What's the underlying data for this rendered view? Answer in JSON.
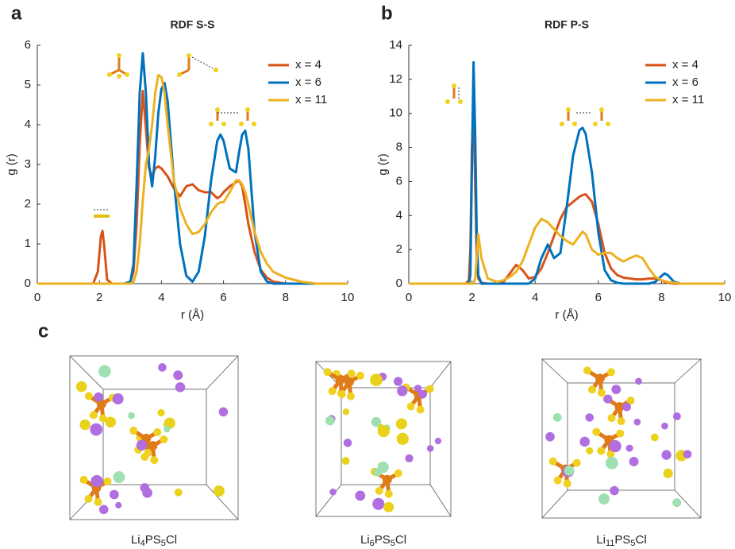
{
  "chart_data": [
    {
      "type": "line",
      "title": "RDF S-S",
      "xlabel": "r (Å)",
      "ylabel": "g (r)",
      "x": [
        0,
        1,
        1.8,
        1.95,
        2.05,
        2.1,
        2.15,
        2.25,
        2.4,
        2.8,
        3.0,
        3.1,
        3.2,
        3.3,
        3.4,
        3.5,
        3.6,
        3.7,
        3.8,
        3.9,
        4.0,
        4.1,
        4.2,
        4.4,
        4.6,
        4.8,
        5.0,
        5.2,
        5.4,
        5.6,
        5.8,
        5.9,
        6.0,
        6.2,
        6.4,
        6.5,
        6.6,
        6.7,
        6.8,
        7.0,
        7.2,
        7.4,
        7.6,
        8.0,
        8.5,
        9.0,
        10
      ],
      "series": [
        {
          "name": "x = 4",
          "color": "#d95319",
          "values": [
            0,
            0,
            0,
            0.3,
            1.2,
            1.33,
            1.0,
            0.1,
            0,
            0,
            0.05,
            0.3,
            1.5,
            3.5,
            4.85,
            3.9,
            2.9,
            2.7,
            2.9,
            2.95,
            2.9,
            2.8,
            2.7,
            2.4,
            2.2,
            2.45,
            2.5,
            2.35,
            2.3,
            2.3,
            2.15,
            2.2,
            2.3,
            2.45,
            2.55,
            2.6,
            2.45,
            2.0,
            1.5,
            0.8,
            0.35,
            0.15,
            0.05,
            0,
            0,
            0,
            0
          ]
        },
        {
          "name": "x = 6",
          "color": "#0072bd",
          "values": [
            0,
            0,
            0,
            0,
            0,
            0,
            0,
            0,
            0,
            0,
            0.05,
            0.5,
            2.5,
            4.8,
            5.8,
            4.8,
            3.0,
            2.45,
            3.2,
            4.3,
            4.9,
            5.05,
            4.6,
            2.6,
            1.0,
            0.2,
            0.05,
            0.3,
            1.2,
            2.6,
            3.6,
            3.75,
            3.6,
            2.9,
            2.8,
            3.3,
            3.75,
            3.85,
            3.4,
            1.3,
            0.3,
            0.05,
            0,
            0,
            0,
            0,
            0
          ]
        },
        {
          "name": "x = 11",
          "color": "#edb120",
          "values": [
            0,
            0,
            0,
            0,
            0,
            0,
            0,
            0,
            0,
            0,
            0,
            0.05,
            0.3,
            1.0,
            2.1,
            3.0,
            3.4,
            4.0,
            4.8,
            5.25,
            5.2,
            4.8,
            4.0,
            2.6,
            1.9,
            1.5,
            1.25,
            1.3,
            1.5,
            1.8,
            2.0,
            2.05,
            2.05,
            2.3,
            2.6,
            2.6,
            2.5,
            2.3,
            2.0,
            1.3,
            0.8,
            0.5,
            0.3,
            0.15,
            0.05,
            0,
            0
          ]
        }
      ],
      "xlim": [
        0,
        10
      ],
      "xticks": [
        0,
        2,
        4,
        6,
        8,
        10
      ],
      "ylim": [
        0,
        6
      ],
      "yticks": [
        0,
        1,
        2,
        3,
        4,
        5,
        6
      ],
      "legend": "upper right",
      "grid": false
    },
    {
      "type": "line",
      "title": "RDF P-S",
      "xlabel": "r (Å)",
      "ylabel": "g (r)",
      "x": [
        0,
        1.8,
        1.9,
        1.95,
        2.0,
        2.05,
        2.1,
        2.15,
        2.2,
        2.3,
        2.5,
        2.8,
        3.0,
        3.2,
        3.4,
        3.6,
        3.8,
        4.0,
        4.2,
        4.4,
        4.6,
        4.8,
        5.0,
        5.2,
        5.4,
        5.5,
        5.6,
        5.8,
        6.0,
        6.2,
        6.4,
        6.6,
        6.8,
        7.0,
        7.2,
        7.4,
        7.6,
        7.8,
        8.0,
        8.1,
        8.2,
        8.4,
        8.6,
        9.0,
        10
      ],
      "series": [
        {
          "name": "x = 4",
          "color": "#d95319",
          "values": [
            0,
            0,
            0.2,
            2,
            8,
            10.5,
            6,
            1.5,
            0.3,
            0.05,
            0,
            0,
            0.1,
            0.6,
            1.1,
            0.8,
            0.3,
            0.4,
            0.9,
            1.8,
            2.8,
            3.8,
            4.5,
            4.8,
            5.1,
            5.2,
            5.25,
            4.8,
            3.5,
            1.8,
            0.9,
            0.5,
            0.35,
            0.3,
            0.25,
            0.25,
            0.3,
            0.3,
            0.2,
            0.1,
            0.05,
            0,
            0,
            0,
            0
          ]
        },
        {
          "name": "x = 6",
          "color": "#0072bd",
          "values": [
            0,
            0,
            0,
            0.5,
            7,
            13,
            9,
            3,
            0.5,
            0,
            0,
            0,
            0,
            0,
            0,
            0,
            0,
            0.3,
            1.5,
            2.3,
            1.5,
            1.8,
            4.5,
            7.5,
            9.0,
            9.15,
            8.8,
            6.5,
            3.0,
            0.8,
            0.2,
            0.05,
            0,
            0,
            0,
            0,
            0,
            0.1,
            0.45,
            0.6,
            0.5,
            0.1,
            0,
            0,
            0
          ]
        },
        {
          "name": "x = 11",
          "color": "#edb120",
          "values": [
            0,
            0,
            0,
            0,
            0,
            0,
            0.3,
            1.5,
            2.9,
            1.5,
            0.3,
            0.1,
            0.2,
            0.4,
            0.7,
            1.3,
            2.3,
            3.3,
            3.8,
            3.6,
            3.2,
            2.8,
            2.5,
            2.3,
            2.8,
            3.05,
            2.9,
            2.0,
            1.7,
            1.8,
            1.8,
            1.5,
            1.3,
            1.5,
            1.65,
            1.5,
            0.9,
            0.4,
            0.2,
            0.15,
            0.1,
            0.05,
            0,
            0,
            0
          ]
        }
      ],
      "xlim": [
        0,
        10
      ],
      "xticks": [
        0,
        2,
        4,
        6,
        8,
        10
      ],
      "ylim": [
        0,
        14
      ],
      "yticks": [
        0,
        2,
        4,
        6,
        8,
        10,
        12,
        14
      ],
      "legend": "upper right",
      "grid": false
    }
  ],
  "panel_labels": [
    "a",
    "b",
    "c"
  ],
  "structures": [
    {
      "caption": [
        "Li",
        "4",
        "PS",
        "5",
        "Cl"
      ]
    },
    {
      "caption": [
        "Li",
        "6",
        "PS",
        "5",
        "Cl"
      ]
    },
    {
      "caption": [
        "Li",
        "11",
        "PS",
        "5",
        "Cl"
      ]
    }
  ]
}
